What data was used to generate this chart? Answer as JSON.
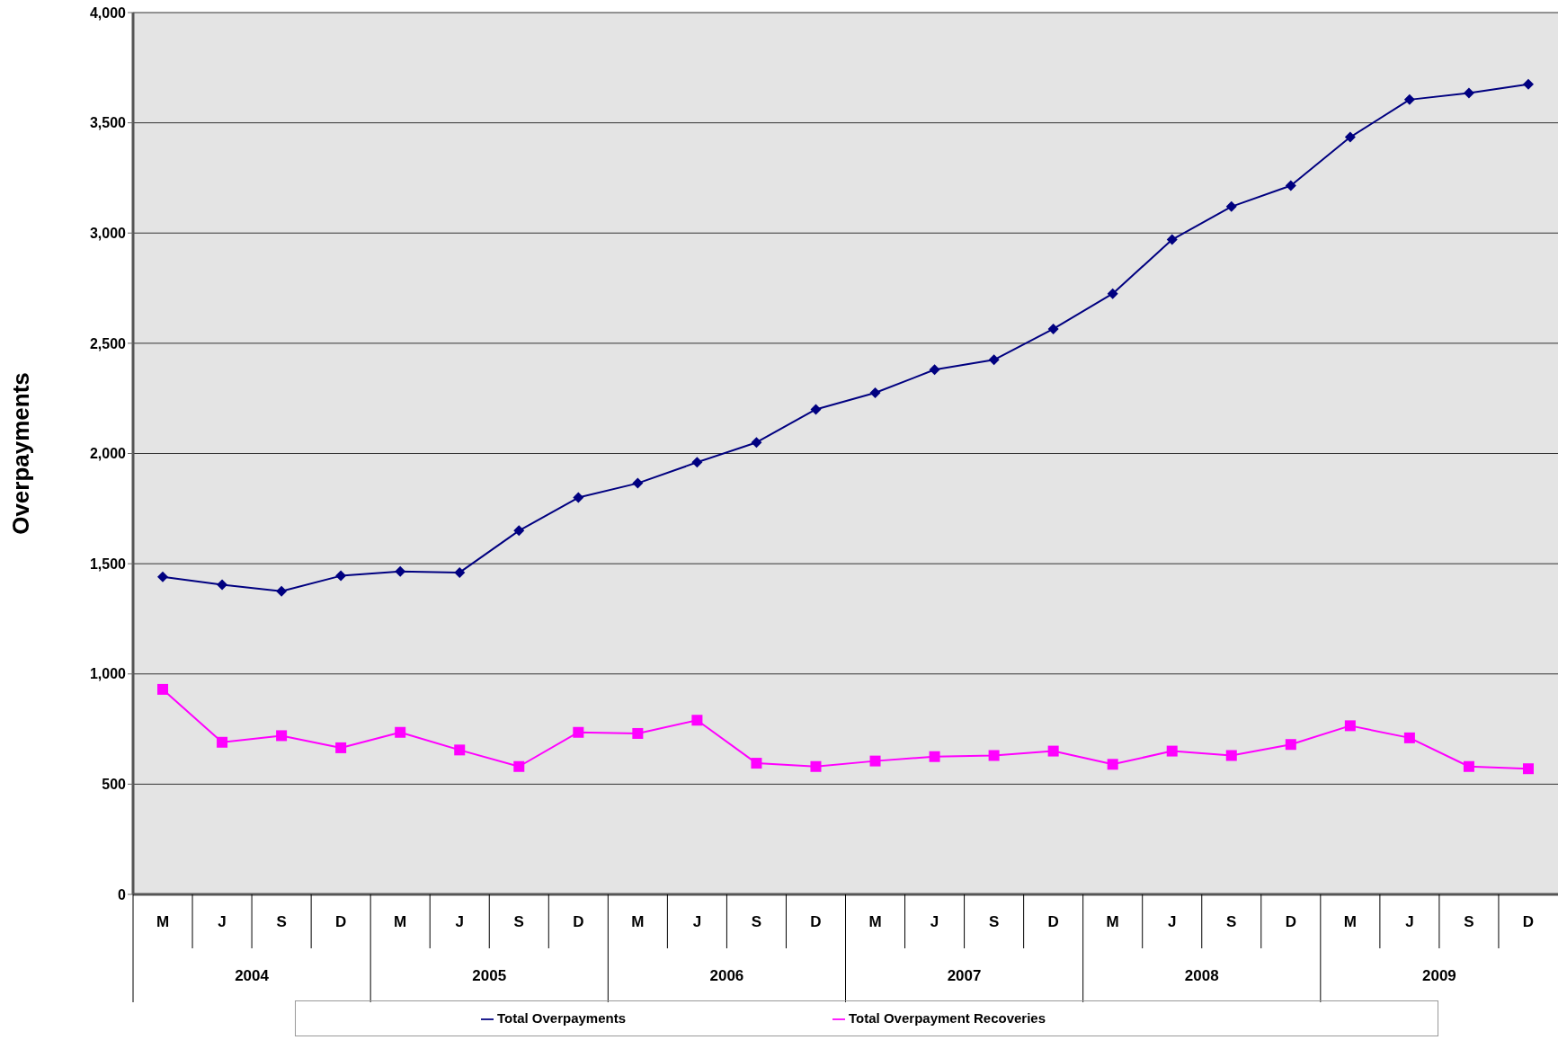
{
  "chart_data": {
    "type": "line",
    "ylabel": "Overpayments",
    "categories": [
      "M",
      "J",
      "S",
      "D",
      "M",
      "J",
      "S",
      "D",
      "M",
      "J",
      "S",
      "D",
      "M",
      "J",
      "S",
      "D",
      "M",
      "J",
      "S",
      "D",
      "M",
      "J",
      "S",
      "D"
    ],
    "annotations": [
      "2004",
      "2005",
      "2006",
      "2007",
      "2008",
      "2009"
    ],
    "series": [
      {
        "name": "Total Overpayments",
        "color": "#000080",
        "marker": "diamond",
        "values": [
          1440,
          1405,
          1375,
          1445,
          1465,
          1460,
          1650,
          1800,
          1865,
          1960,
          2050,
          2200,
          2275,
          2380,
          2425,
          2565,
          2725,
          2970,
          3120,
          3215,
          3435,
          3605,
          3635,
          3675
        ]
      },
      {
        "name": "Total Overpayment Recoveries",
        "color": "#ff00ff",
        "marker": "square",
        "values": [
          930,
          690,
          720,
          665,
          735,
          655,
          580,
          735,
          730,
          790,
          595,
          580,
          605,
          625,
          630,
          650,
          590,
          650,
          630,
          680,
          765,
          710,
          580,
          570
        ]
      }
    ],
    "ylim": [
      0,
      4000
    ],
    "yticks": [
      0,
      500,
      {
        "value": 1000,
        "label": "1,000"
      },
      {
        "value": 1500,
        "label": "1,500"
      },
      {
        "value": 2000,
        "label": "2,000"
      },
      {
        "value": 2500,
        "label": "2,500"
      },
      {
        "value": 3000,
        "label": "3,000"
      },
      {
        "value": 3500,
        "label": "3,500"
      },
      {
        "value": 4000,
        "label": "4,000"
      }
    ],
    "grid": "y",
    "legend": "bottom"
  }
}
